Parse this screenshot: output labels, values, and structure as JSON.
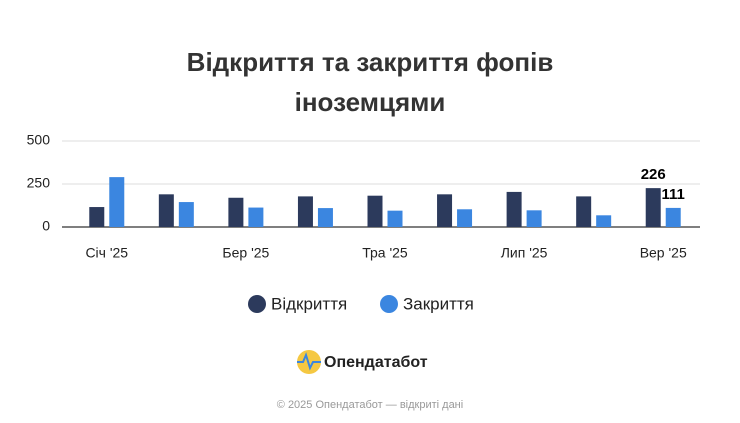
{
  "chart_data": {
    "type": "bar",
    "title": "Відкриття та закриття фопів іноземцями",
    "categories": [
      "Січ '25",
      null,
      "Бер '25",
      null,
      "Тра '25",
      null,
      "Лип '25",
      null,
      "Вер '25"
    ],
    "series": [
      {
        "name": "Відкриття",
        "color": "#2c3a5c",
        "values": [
          116,
          190,
          170,
          178,
          182,
          190,
          204,
          178,
          226
        ]
      },
      {
        "name": "Закриття",
        "color": "#3b86e0",
        "values": [
          290,
          145,
          113,
          110,
          95,
          103,
          97,
          68,
          111
        ]
      }
    ],
    "ylim": [
      0,
      500
    ],
    "yticks": [
      0,
      250,
      500
    ],
    "grid": true
  },
  "brand": "Опендатабот",
  "footer": "© 2025 Опендатабот — відкриті дані"
}
